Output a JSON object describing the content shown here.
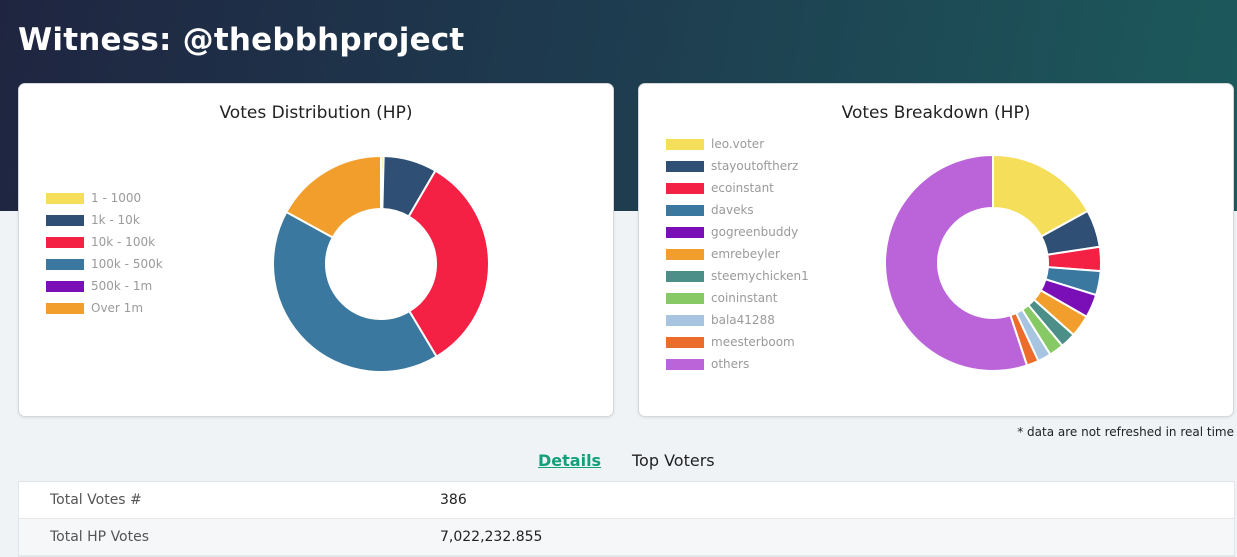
{
  "page": {
    "title": "Witness: @thebbhproject"
  },
  "distribution": {
    "title": "Votes Distribution (HP)",
    "legend": [
      {
        "label": "1 - 1000",
        "color": "#f5df5a",
        "value": 0.4
      },
      {
        "label": "1k - 10k",
        "color": "#2f4f74",
        "value": 8.0
      },
      {
        "label": "10k - 100k",
        "color": "#f52145",
        "value": 33.0
      },
      {
        "label": "100k - 500k",
        "color": "#3a78a0",
        "value": 41.6
      },
      {
        "label": "500k - 1m",
        "color": "#7b0fb7",
        "value": 0.0
      },
      {
        "label": "Over 1m",
        "color": "#f29e2c",
        "value": 17.0
      }
    ]
  },
  "breakdown": {
    "title": "Votes Breakdown (HP)",
    "legend": [
      {
        "label": "leo.voter",
        "color": "#f5df5a",
        "value": 17.0
      },
      {
        "label": "stayoutoftherz",
        "color": "#2f4f74",
        "value": 5.6
      },
      {
        "label": "ecoinstant",
        "color": "#f52145",
        "value": 3.6
      },
      {
        "label": "daveks",
        "color": "#3a78a0",
        "value": 3.6
      },
      {
        "label": "gogreenbuddy",
        "color": "#7b0fb7",
        "value": 3.5
      },
      {
        "label": "emrebeyler",
        "color": "#f29e2c",
        "value": 3.3
      },
      {
        "label": "steemychicken1",
        "color": "#4c8f88",
        "value": 2.3
      },
      {
        "label": "coininstant",
        "color": "#86c965",
        "value": 2.2
      },
      {
        "label": "bala41288",
        "color": "#a7c5e1",
        "value": 2.0
      },
      {
        "label": "meesterboom",
        "color": "#ec6d2b",
        "value": 1.8
      },
      {
        "label": "others",
        "color": "#bb64d9",
        "value": 55.1
      }
    ]
  },
  "footnote": "* data are not refreshed in real time",
  "tabs": {
    "details": "Details",
    "top_voters": "Top Voters"
  },
  "details": {
    "rows": [
      {
        "label": "Total Votes #",
        "value": "386"
      },
      {
        "label": "Total HP Votes",
        "value": "7,022,232.855"
      }
    ]
  }
}
